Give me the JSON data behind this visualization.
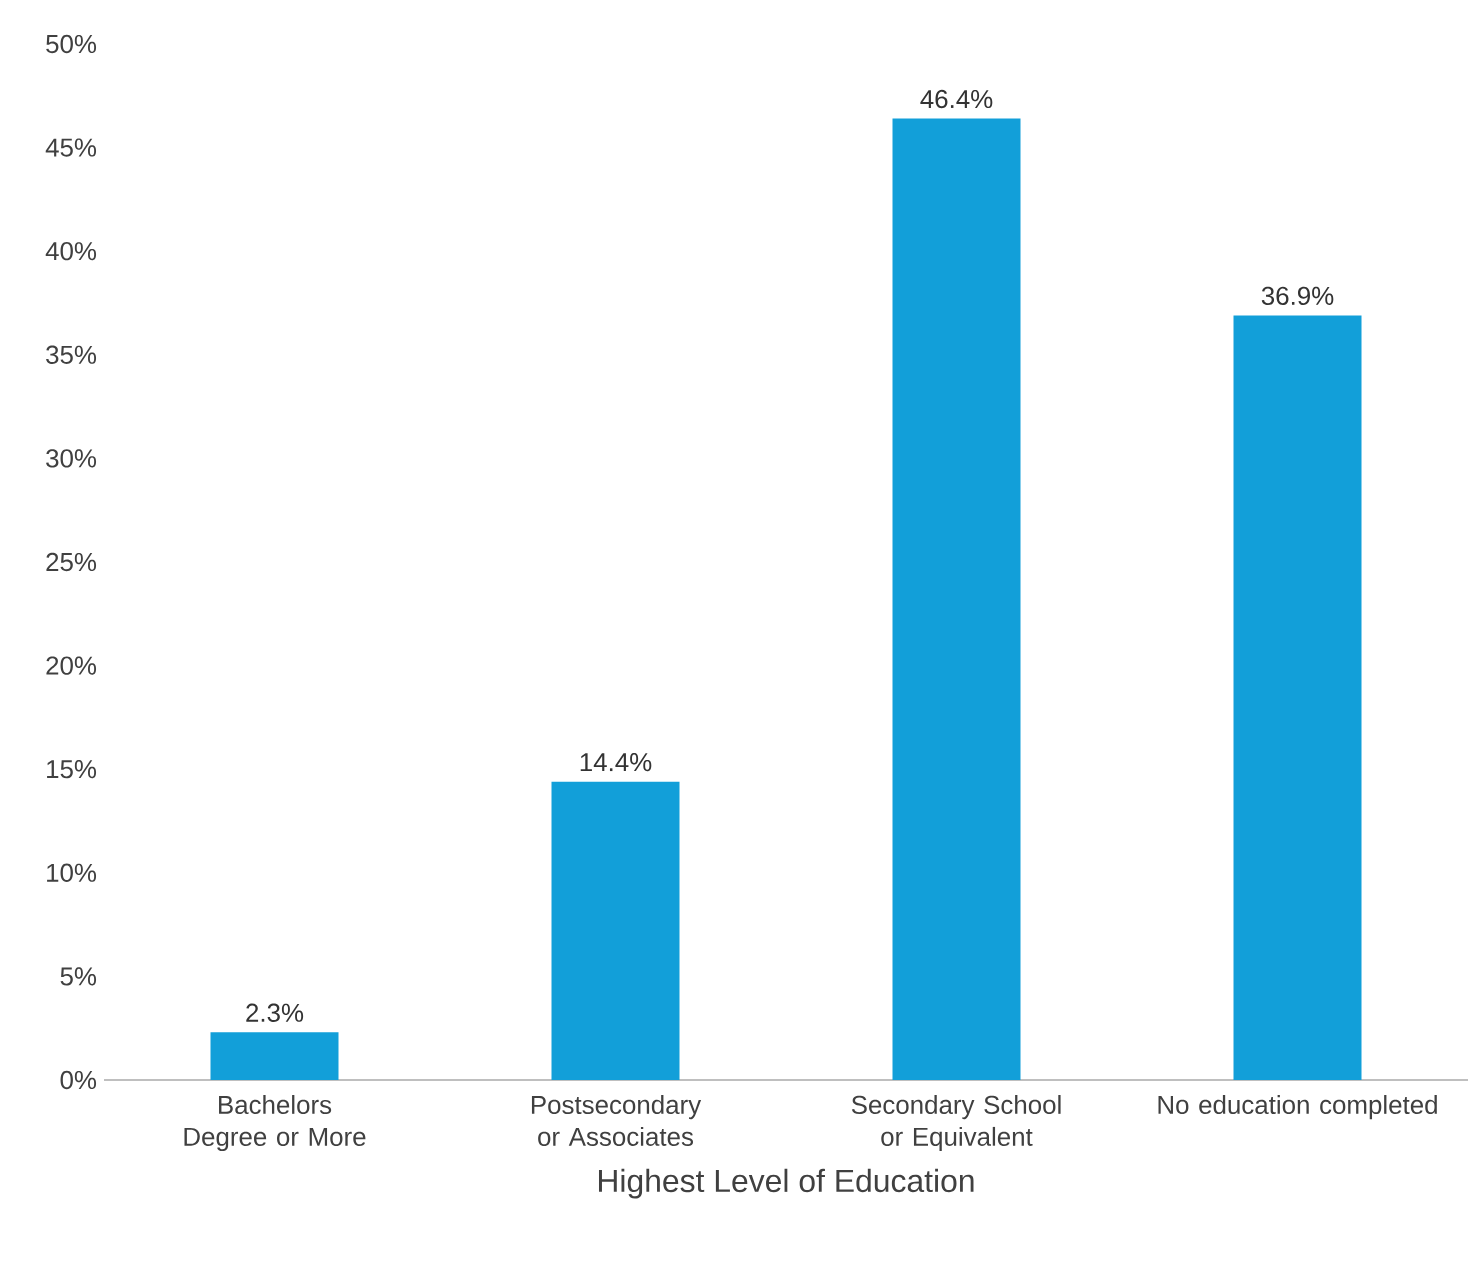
{
  "chart_data": {
    "type": "bar",
    "xlabel": "Highest Level of Education",
    "categories": [
      "Bachelors Degree or More",
      "Postsecondary or Associates",
      "Secondary School or Equivalent",
      "No education completed"
    ],
    "values": [
      2.3,
      14.4,
      46.4,
      36.9
    ],
    "value_labels": [
      "2.3%",
      "14.4%",
      "46.4%",
      "36.9%"
    ],
    "color": "#129fd9",
    "ylim": [
      0,
      50
    ],
    "yticks": [
      {
        "value": 0,
        "label": "0%"
      },
      {
        "value": 5,
        "label": "5%"
      },
      {
        "value": 10,
        "label": "10%"
      },
      {
        "value": 15,
        "label": "15%"
      },
      {
        "value": 20,
        "label": "20%"
      },
      {
        "value": 25,
        "label": "25%"
      },
      {
        "value": 30,
        "label": "30%"
      },
      {
        "value": 35,
        "label": "35%"
      },
      {
        "value": 40,
        "label": "40%"
      },
      {
        "value": 45,
        "label": "45%"
      },
      {
        "value": 50,
        "label": "50%"
      }
    ]
  }
}
